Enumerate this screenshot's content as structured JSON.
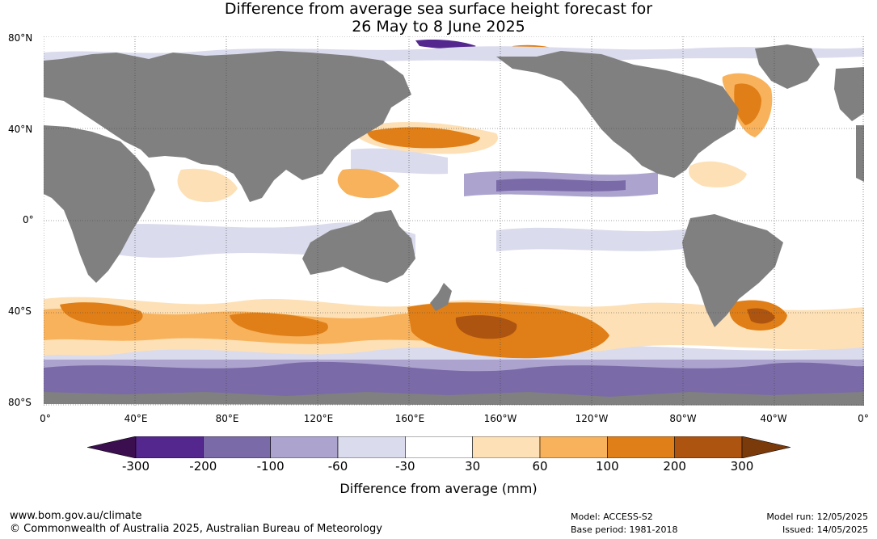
{
  "title": {
    "line1": "Difference from average sea surface height forecast for",
    "line2": "26 May to 8 June 2025"
  },
  "lat_labels": [
    "80°N",
    "40°N",
    "0°",
    "40°S",
    "80°S"
  ],
  "lon_labels": [
    "0°",
    "40°E",
    "80°E",
    "120°E",
    "160°E",
    "160°W",
    "120°W",
    "80°W",
    "40°W",
    "0°"
  ],
  "colorbar": {
    "title": "Difference from average (mm)",
    "labels": [
      "-300",
      "-200",
      "-100",
      "-60",
      "-30",
      "30",
      "60",
      "100",
      "200",
      "300"
    ],
    "colors": [
      "#3b0f4f",
      "#54278f",
      "#7a6aa8",
      "#aca4cf",
      "#dadbec",
      "#ffffff",
      "#fde0b5",
      "#f8b25c",
      "#e07f17",
      "#ad5410",
      "#7a3a0a"
    ]
  },
  "map_colors": {
    "land": "#808080",
    "ocean_base": "#ffffff"
  },
  "footer": {
    "url": "www.bom.gov.au/climate",
    "copyright": "© Commonwealth of Australia 2025, Australian Bureau of Meteorology",
    "model": "Model: ACCESS-S2",
    "base_period": "Base period: 1981-2018",
    "model_run": "Model run: 12/05/2025",
    "issued": "Issued: 14/05/2025"
  }
}
